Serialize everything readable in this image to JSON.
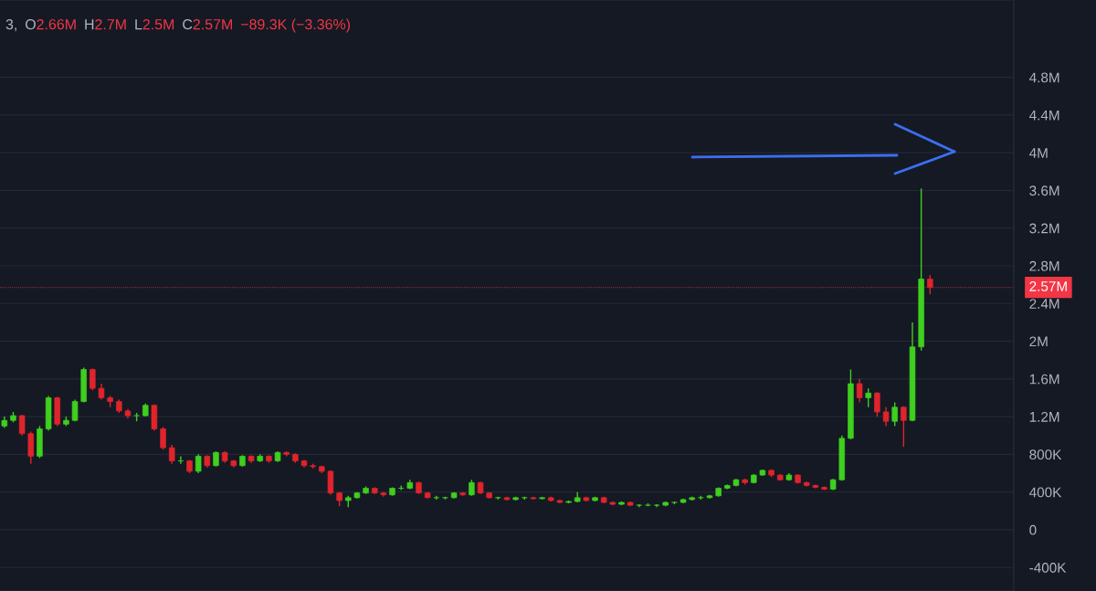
{
  "chart_data": {
    "type": "candlestick",
    "annotations": [
      "3,",
      "O",
      "2.66M",
      "H",
      "2.7M",
      "L",
      "2.5M",
      "C",
      "2.57M",
      "−89.3K (−3.36%)"
    ],
    "categories": [
      null,
      null,
      null,
      null,
      null,
      null,
      null,
      null,
      null,
      null,
      null,
      null,
      null,
      null,
      null,
      null,
      null,
      null,
      null,
      null,
      null,
      null,
      null,
      null,
      null,
      null,
      null,
      null,
      null,
      null,
      null,
      null,
      null,
      null,
      null,
      null,
      null,
      null,
      null,
      null,
      null,
      null,
      null,
      null,
      null,
      null,
      null,
      null,
      null,
      null,
      null,
      null,
      null,
      null,
      null,
      null,
      null,
      null,
      null,
      null,
      null,
      null,
      null,
      null,
      null,
      null,
      null,
      null,
      null,
      null,
      null,
      null,
      null,
      null,
      null,
      null,
      null,
      null,
      null,
      null,
      null,
      null,
      null,
      null,
      null,
      null,
      null,
      null,
      null,
      null,
      null,
      null,
      null,
      null,
      null,
      null,
      null,
      null,
      null,
      null,
      null,
      null,
      null,
      null,
      null,
      null,
      null,
      null,
      null,
      null,
      null,
      null,
      null,
      null,
      null
    ],
    "ohlc": [
      [
        1100000,
        1200000,
        1080000,
        1160000
      ],
      [
        1160000,
        1250000,
        1140000,
        1210000
      ],
      [
        1210000,
        1220000,
        1000000,
        1020000
      ],
      [
        1020000,
        1040000,
        700000,
        780000
      ],
      [
        780000,
        1100000,
        760000,
        1070000
      ],
      [
        1070000,
        1420000,
        1050000,
        1400000
      ],
      [
        1400000,
        1410000,
        1100000,
        1120000
      ],
      [
        1120000,
        1200000,
        1100000,
        1160000
      ],
      [
        1160000,
        1380000,
        1150000,
        1360000
      ],
      [
        1360000,
        1720000,
        1350000,
        1700000
      ],
      [
        1700000,
        1710000,
        1480000,
        1500000
      ],
      [
        1500000,
        1550000,
        1380000,
        1400000
      ],
      [
        1400000,
        1420000,
        1300000,
        1360000
      ],
      [
        1360000,
        1380000,
        1240000,
        1260000
      ],
      [
        1260000,
        1280000,
        1180000,
        1210000
      ],
      [
        1210000,
        1240000,
        1150000,
        1210000
      ],
      [
        1210000,
        1340000,
        1200000,
        1320000
      ],
      [
        1320000,
        1330000,
        1050000,
        1070000
      ],
      [
        1070000,
        1090000,
        850000,
        870000
      ],
      [
        870000,
        900000,
        700000,
        730000
      ],
      [
        730000,
        780000,
        700000,
        730000
      ],
      [
        730000,
        740000,
        600000,
        620000
      ],
      [
        620000,
        800000,
        600000,
        780000
      ],
      [
        780000,
        790000,
        660000,
        680000
      ],
      [
        680000,
        830000,
        670000,
        820000
      ],
      [
        820000,
        830000,
        710000,
        730000
      ],
      [
        730000,
        740000,
        660000,
        680000
      ],
      [
        680000,
        790000,
        670000,
        780000
      ],
      [
        780000,
        790000,
        710000,
        730000
      ],
      [
        730000,
        800000,
        720000,
        780000
      ],
      [
        780000,
        790000,
        710000,
        730000
      ],
      [
        730000,
        830000,
        720000,
        820000
      ],
      [
        820000,
        830000,
        780000,
        800000
      ],
      [
        800000,
        810000,
        710000,
        730000
      ],
      [
        730000,
        740000,
        660000,
        680000
      ],
      [
        680000,
        700000,
        650000,
        670000
      ],
      [
        670000,
        680000,
        600000,
        620000
      ],
      [
        620000,
        630000,
        370000,
        390000
      ],
      [
        390000,
        400000,
        250000,
        310000
      ],
      [
        310000,
        360000,
        240000,
        340000
      ],
      [
        340000,
        400000,
        330000,
        390000
      ],
      [
        390000,
        460000,
        380000,
        440000
      ],
      [
        440000,
        450000,
        380000,
        390000
      ],
      [
        390000,
        400000,
        350000,
        370000
      ],
      [
        370000,
        450000,
        360000,
        440000
      ],
      [
        440000,
        470000,
        420000,
        440000
      ],
      [
        440000,
        530000,
        430000,
        500000
      ],
      [
        500000,
        510000,
        380000,
        390000
      ],
      [
        390000,
        400000,
        330000,
        340000
      ],
      [
        340000,
        360000,
        320000,
        340000
      ],
      [
        340000,
        350000,
        320000,
        340000
      ],
      [
        340000,
        400000,
        330000,
        390000
      ],
      [
        390000,
        400000,
        360000,
        370000
      ],
      [
        370000,
        530000,
        360000,
        500000
      ],
      [
        500000,
        510000,
        380000,
        390000
      ],
      [
        390000,
        400000,
        330000,
        340000
      ],
      [
        340000,
        350000,
        320000,
        340000
      ],
      [
        340000,
        350000,
        310000,
        320000
      ],
      [
        320000,
        350000,
        310000,
        340000
      ],
      [
        340000,
        350000,
        320000,
        340000
      ],
      [
        340000,
        350000,
        320000,
        330000
      ],
      [
        330000,
        350000,
        320000,
        340000
      ],
      [
        340000,
        350000,
        300000,
        310000
      ],
      [
        310000,
        320000,
        280000,
        290000
      ],
      [
        290000,
        310000,
        280000,
        300000
      ],
      [
        300000,
        400000,
        290000,
        340000
      ],
      [
        340000,
        350000,
        300000,
        310000
      ],
      [
        310000,
        350000,
        300000,
        340000
      ],
      [
        340000,
        350000,
        280000,
        290000
      ],
      [
        290000,
        300000,
        260000,
        270000
      ],
      [
        270000,
        300000,
        260000,
        290000
      ],
      [
        290000,
        300000,
        250000,
        260000
      ],
      [
        260000,
        270000,
        240000,
        260000
      ],
      [
        260000,
        280000,
        250000,
        260000
      ],
      [
        260000,
        270000,
        240000,
        260000
      ],
      [
        260000,
        300000,
        250000,
        290000
      ],
      [
        290000,
        300000,
        270000,
        290000
      ],
      [
        290000,
        330000,
        280000,
        320000
      ],
      [
        320000,
        350000,
        310000,
        340000
      ],
      [
        340000,
        360000,
        320000,
        340000
      ],
      [
        340000,
        370000,
        330000,
        360000
      ],
      [
        360000,
        450000,
        350000,
        440000
      ],
      [
        440000,
        480000,
        430000,
        470000
      ],
      [
        470000,
        540000,
        460000,
        530000
      ],
      [
        530000,
        540000,
        480000,
        500000
      ],
      [
        500000,
        590000,
        490000,
        580000
      ],
      [
        580000,
        640000,
        570000,
        630000
      ],
      [
        630000,
        640000,
        560000,
        580000
      ],
      [
        580000,
        590000,
        520000,
        530000
      ],
      [
        530000,
        600000,
        520000,
        580000
      ],
      [
        580000,
        590000,
        490000,
        500000
      ],
      [
        500000,
        510000,
        460000,
        470000
      ],
      [
        470000,
        480000,
        440000,
        450000
      ],
      [
        450000,
        460000,
        420000,
        430000
      ],
      [
        430000,
        540000,
        420000,
        530000
      ],
      [
        530000,
        1000000,
        520000,
        970000
      ],
      [
        970000,
        1700000,
        960000,
        1550000
      ],
      [
        1550000,
        1600000,
        1350000,
        1400000
      ],
      [
        1400000,
        1500000,
        1300000,
        1450000
      ],
      [
        1450000,
        1460000,
        1200000,
        1250000
      ],
      [
        1250000,
        1300000,
        1100000,
        1150000
      ],
      [
        1150000,
        1350000,
        1100000,
        1300000
      ],
      [
        1300000,
        1310000,
        880000,
        1160000
      ],
      [
        1160000,
        2200000,
        1150000,
        1940000
      ],
      [
        1940000,
        3620000,
        1900000,
        2660000
      ],
      [
        2660000,
        2700000,
        2500000,
        2570000
      ],
      null,
      null,
      null,
      null,
      null,
      null,
      null,
      null,
      null
    ],
    "colors": [
      "#3fcf1f",
      "#3fcf1f",
      "#e0242c",
      "#e0242c",
      "#3fcf1f",
      "#3fcf1f",
      "#e0242c",
      "#3fcf1f",
      "#3fcf1f",
      "#3fcf1f",
      "#e0242c",
      "#e0242c",
      "#e0242c",
      "#e0242c",
      "#e0242c",
      "#3fcf1f",
      "#3fcf1f",
      "#e0242c",
      "#e0242c",
      "#e0242c",
      "#3fcf1f",
      "#e0242c",
      "#3fcf1f",
      "#e0242c",
      "#3fcf1f",
      "#e0242c",
      "#e0242c",
      "#3fcf1f",
      "#e0242c",
      "#3fcf1f",
      "#e0242c",
      "#3fcf1f",
      "#e0242c",
      "#e0242c",
      "#e0242c",
      "#e0242c",
      "#e0242c",
      "#e0242c",
      "#e0242c",
      "#3fcf1f",
      "#3fcf1f",
      "#3fcf1f",
      "#e0242c",
      "#e0242c",
      "#3fcf1f",
      "#3fcf1f",
      "#3fcf1f",
      "#e0242c",
      "#e0242c",
      "#3fcf1f",
      "#3fcf1f",
      "#3fcf1f",
      "#e0242c",
      "#3fcf1f",
      "#e0242c",
      "#e0242c",
      "#3fcf1f",
      "#e0242c",
      "#3fcf1f",
      "#3fcf1f",
      "#e0242c",
      "#3fcf1f",
      "#e0242c",
      "#e0242c",
      "#3fcf1f",
      "#3fcf1f",
      "#e0242c",
      "#3fcf1f",
      "#e0242c",
      "#e0242c",
      "#3fcf1f",
      "#e0242c",
      "#3fcf1f",
      "#3fcf1f",
      "#3fcf1f",
      "#3fcf1f",
      "#3fcf1f",
      "#3fcf1f",
      "#3fcf1f",
      "#3fcf1f",
      "#3fcf1f",
      "#3fcf1f",
      "#3fcf1f",
      "#3fcf1f",
      "#e0242c",
      "#3fcf1f",
      "#3fcf1f",
      "#e0242c",
      "#e0242c",
      "#3fcf1f",
      "#e0242c",
      "#e0242c",
      "#e0242c",
      "#e0242c",
      "#3fcf1f",
      "#3fcf1f",
      "#3fcf1f",
      "#e0242c",
      "#3fcf1f",
      "#e0242c",
      "#e0242c",
      "#3fcf1f",
      "#e0242c",
      "#3fcf1f",
      "#3fcf1f",
      "#e0242c",
      null,
      null,
      null,
      null,
      null,
      null,
      null,
      null,
      null
    ],
    "ylim": [
      -650000,
      5620000
    ],
    "yticks": [
      {
        "value": -400000,
        "label": "-400K"
      },
      0,
      {
        "value": 400000,
        "label": "400K"
      },
      {
        "value": 800000,
        "label": "800K"
      },
      {
        "value": 1200000,
        "label": "1.2M"
      },
      {
        "value": 1600000,
        "label": "1.6M"
      },
      {
        "value": 2000000,
        "label": "2M"
      },
      {
        "value": 2400000,
        "label": "2.4M"
      },
      {
        "value": 2800000,
        "label": "2.8M"
      },
      {
        "value": 3200000,
        "label": "3.2M"
      },
      {
        "value": 3600000,
        "label": "3.6M"
      },
      {
        "value": 4000000,
        "label": "4M"
      },
      {
        "value": 4400000,
        "label": "4.4M"
      },
      {
        "value": 4800000,
        "label": "4.8M"
      }
    ],
    "ref_lines": [
      {
        "axis": "y",
        "value": 2570000,
        "label": "2.57M",
        "color": "#f23645",
        "line_style": "dotted"
      }
    ],
    "grid": "y"
  }
}
